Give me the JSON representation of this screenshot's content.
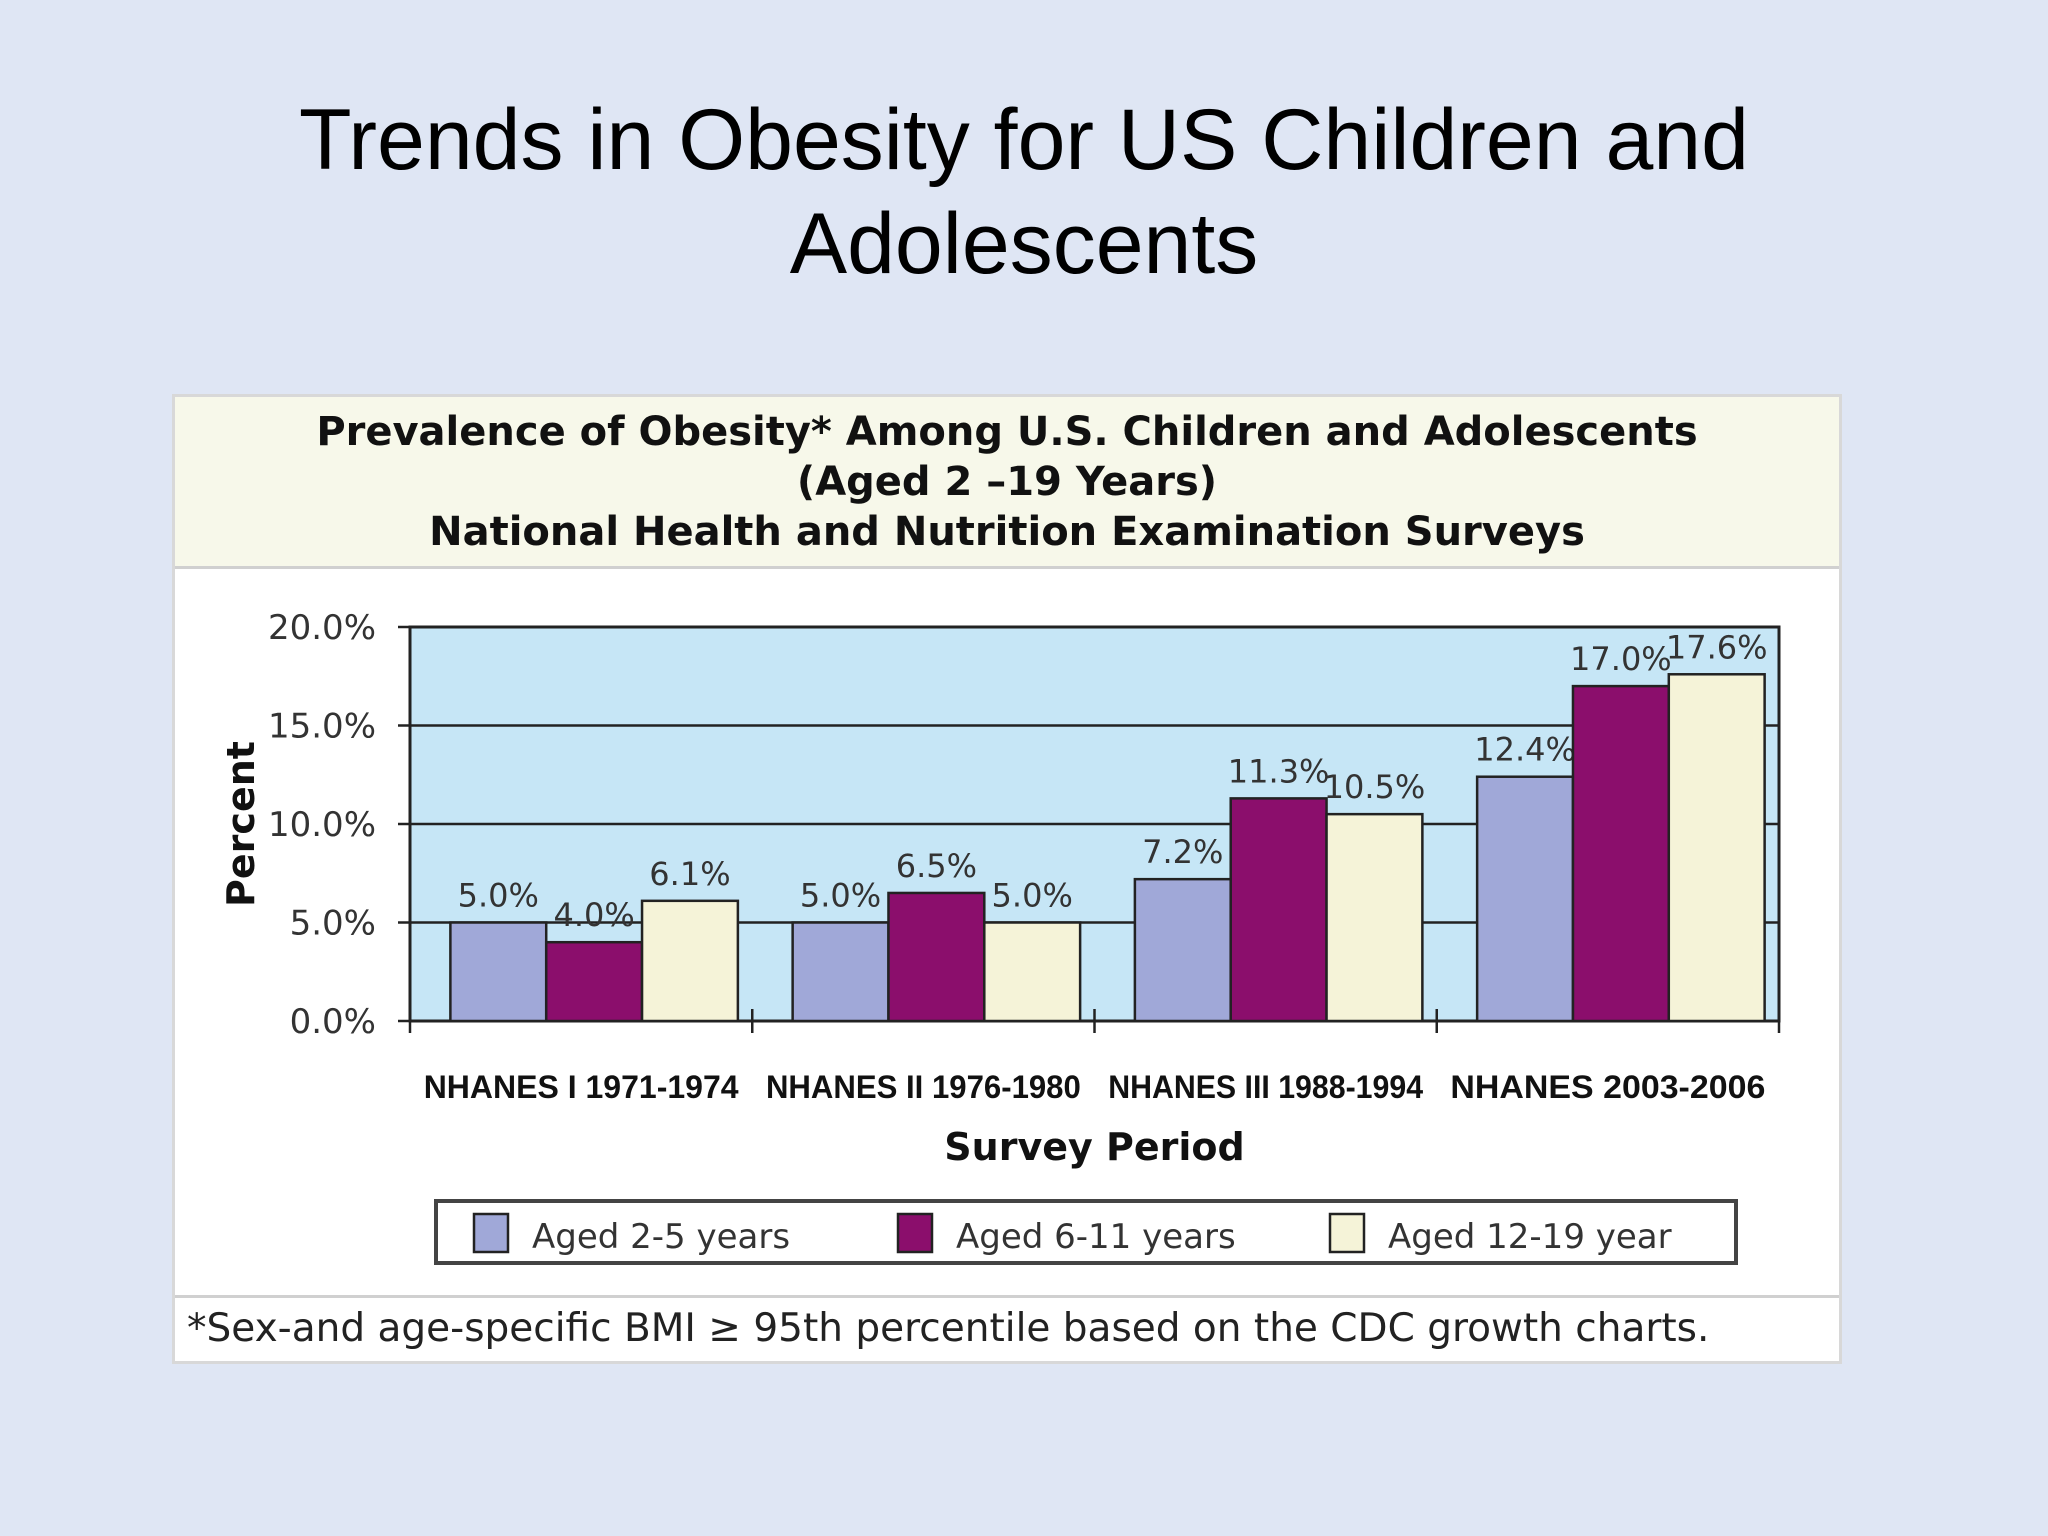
{
  "slide": {
    "title_line1": "Trends in Obesity for US Children and",
    "title_line2": "Adolescents"
  },
  "chart_header": {
    "line1": "Prevalence of Obesity* Among U.S. Children and Adolescents",
    "line2": "(Aged 2 –19 Years)",
    "line3": "National Health and Nutrition Examination Surveys"
  },
  "footnote": "*Sex-and age-specific BMI ≥ 95th percentile based on the CDC growth charts.",
  "colors": {
    "background": "#dfe6f4",
    "plot_area": "#c6e6f6",
    "aged_2_5": "#a0a8d8",
    "aged_6_11": "#8b0e6c",
    "aged_12_19": "#f5f3d8"
  },
  "chart_data": {
    "type": "bar",
    "title": "Prevalence of Obesity* Among U.S. Children and Adolescents (Aged 2 –19 Years) National Health and Nutrition Examination Surveys",
    "xlabel": "Survey Period",
    "ylabel": "Percent",
    "ylim": [
      0,
      20
    ],
    "yticks": [
      "0.0%",
      "5.0%",
      "10.0%",
      "15.0%",
      "20.0%"
    ],
    "grid": true,
    "legend_placement": "bottom",
    "categories": [
      "NHANES I 1971-1974",
      "NHANES II 1976-1980",
      "NHANES III 1988-1994",
      "NHANES 2003-2006"
    ],
    "series": [
      {
        "name": "Aged 2-5  years",
        "values": [
          5.0,
          5.0,
          7.2,
          12.4
        ],
        "labels": [
          "5.0%",
          "5.0%",
          "7.2%",
          "12.4%"
        ],
        "color": "#a0a8d8"
      },
      {
        "name": "Aged 6-11 years",
        "values": [
          4.0,
          6.5,
          11.3,
          17.0
        ],
        "labels": [
          "4.0%",
          "6.5%",
          "11.3%",
          "17.0%"
        ],
        "color": "#8b0e6c"
      },
      {
        "name": "Aged  12-19 year",
        "values": [
          6.1,
          5.0,
          10.5,
          17.6
        ],
        "labels": [
          "6.1%",
          "5.0%",
          "10.5%",
          "17.6%"
        ],
        "color": "#f5f3d8"
      }
    ]
  }
}
